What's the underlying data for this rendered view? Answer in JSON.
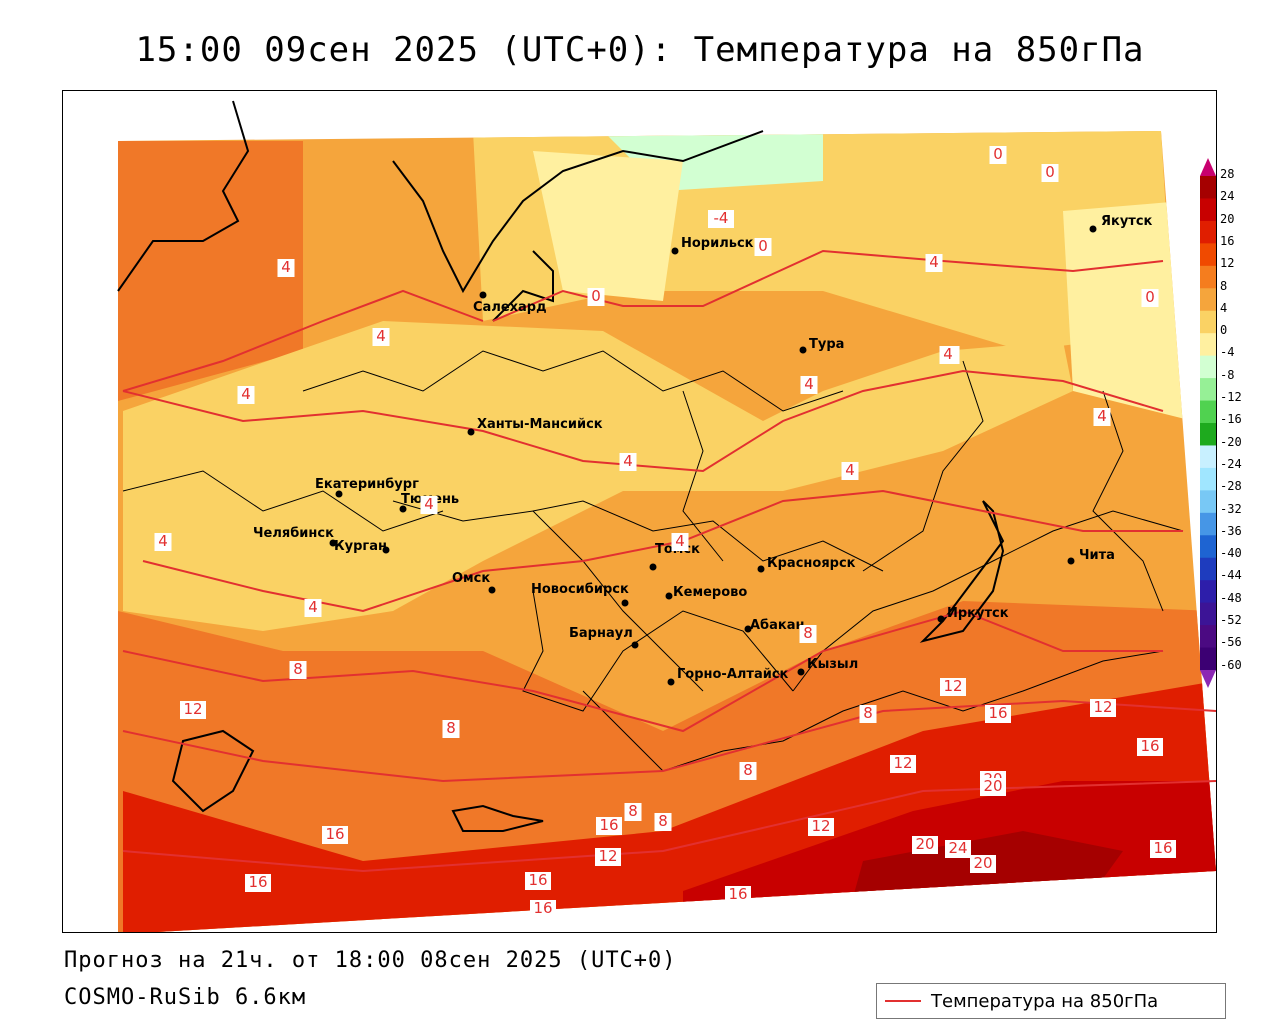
{
  "header": {
    "title": "15:00 09сен 2025 (UTC+0): Температура на 850гПа"
  },
  "footer": {
    "forecast": "Прогноз на 21ч. от 18:00 08сен 2025 (UTC+0)",
    "model": "COSMO-RuSib 6.6км"
  },
  "legend": {
    "label": "Температура на 850гПа",
    "line_color": "#e23030"
  },
  "colorbar": {
    "ticks": [
      "28",
      "24",
      "20",
      "16",
      "12",
      "8",
      "4",
      "0",
      "-4",
      "-8",
      "-12",
      "-16",
      "-20",
      "-24",
      "-28",
      "-32",
      "-36",
      "-40",
      "-44",
      "-48",
      "-52",
      "-56",
      "-60"
    ],
    "colors": [
      "#c8006e",
      "#a50000",
      "#c80000",
      "#e01e00",
      "#f04a00",
      "#f57d1e",
      "#f5a53c",
      "#fad264",
      "#fff0a0",
      "#d2ffd2",
      "#96f096",
      "#50d250",
      "#1eaa1e",
      "#c8f0ff",
      "#a0e6ff",
      "#78c8f5",
      "#4696e6",
      "#1e64d2",
      "#1e3cbe",
      "#2d1eaa",
      "#3c1496",
      "#4b0a82",
      "#3c0073",
      "#8c28b4"
    ]
  },
  "cities": [
    {
      "name": "Норильск",
      "label": "Норильск"
    },
    {
      "name": "Якутск",
      "label": "Якутск"
    },
    {
      "name": "Салехард",
      "label": "Салехард"
    },
    {
      "name": "Тура",
      "label": "Тура"
    },
    {
      "name": "Ханты-Мансийск",
      "label": "Ханты-Мансийск"
    },
    {
      "name": "Екатеринбург",
      "label": "Екатеринбург"
    },
    {
      "name": "Тюмень",
      "label": "Тюмень"
    },
    {
      "name": "Челябинск",
      "label": "Челябинск"
    },
    {
      "name": "Курган",
      "label": "Курган"
    },
    {
      "name": "Омск",
      "label": "Омск"
    },
    {
      "name": "Новосибирск",
      "label": "Новосибирск"
    },
    {
      "name": "Томск",
      "label": "Томск"
    },
    {
      "name": "Кемерово",
      "label": "Кемерово"
    },
    {
      "name": "Красноярск",
      "label": "Красноярск"
    },
    {
      "name": "Абакан",
      "label": "Абакан"
    },
    {
      "name": "Барнаул",
      "label": "Барнаул"
    },
    {
      "name": "Горно-Алтайск",
      "label": "Горно-Алтайск"
    },
    {
      "name": "Кызыл",
      "label": "Кызыл"
    },
    {
      "name": "Иркутск",
      "label": "Иркутск"
    },
    {
      "name": "Чита",
      "label": "Чита"
    }
  ],
  "isotherm_labels": [
    "0",
    "0",
    "-4",
    "0",
    "0",
    "0",
    "4",
    "4",
    "8",
    "4",
    "4",
    "4",
    "4",
    "4",
    "4",
    "4",
    "4",
    "4",
    "4",
    "4",
    "8",
    "8",
    "8",
    "8",
    "12",
    "12",
    "16",
    "12",
    "16",
    "20",
    "16",
    "20",
    "12",
    "8",
    "12",
    "16",
    "16",
    "20",
    "24",
    "20",
    "16",
    "12",
    "16",
    "16",
    "16",
    "8",
    "8"
  ]
}
